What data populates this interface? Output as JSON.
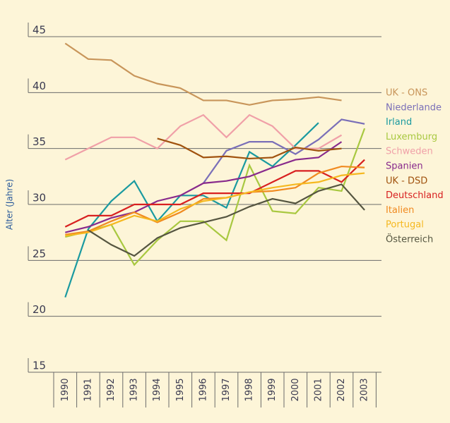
{
  "chart_data": {
    "type": "line",
    "y_label": "Alter (Jahre)",
    "categories": [
      "1990",
      "1991",
      "1992",
      "1993",
      "1994",
      "1995",
      "1996",
      "1997",
      "1998",
      "1999",
      "2000",
      "2001",
      "2002",
      "2003"
    ],
    "ylim": [
      15,
      45
    ],
    "yticks": [
      15,
      20,
      25,
      30,
      35,
      40,
      45
    ],
    "grid": true,
    "legend": "right",
    "series": [
      {
        "name": "UK - ONS",
        "color": "#c8955a",
        "values": [
          44.4,
          43,
          42.9,
          41.5,
          40.8,
          40.4,
          39.3,
          39.3,
          38.9,
          39.3,
          39.4,
          39.6,
          39.3,
          null
        ]
      },
      {
        "name": "Niederlande",
        "color": "#7a6fb8",
        "values": [
          null,
          null,
          null,
          null,
          null,
          null,
          31.9,
          34.8,
          35.6,
          35.6,
          34.5,
          35.8,
          37.6,
          37.2
        ]
      },
      {
        "name": "Irland",
        "color": "#1a9aa0",
        "values": [
          21.7,
          27.8,
          30.3,
          32.1,
          28.5,
          30.8,
          30.8,
          29.7,
          34.7,
          33.4,
          35.3,
          37.3,
          null,
          null
        ]
      },
      {
        "name": "Luxemburg",
        "color": "#a8c840",
        "values": [
          27.1,
          27.6,
          28.2,
          24.6,
          26.8,
          28.5,
          28.5,
          26.8,
          33.5,
          29.4,
          29.2,
          31.5,
          31.2,
          36.8
        ]
      },
      {
        "name": "Schweden",
        "color": "#f0a0a8",
        "values": [
          34,
          35,
          36,
          36,
          35,
          37,
          38,
          36,
          38,
          37,
          35,
          35,
          36.2,
          null
        ]
      },
      {
        "name": "Spanien",
        "color": "#882a8c",
        "values": [
          27.5,
          28,
          28.8,
          29.3,
          30.3,
          30.8,
          31.9,
          32.1,
          32.5,
          33.3,
          34,
          34.2,
          35.6,
          null
        ]
      },
      {
        "name": "UK - DSD",
        "color": "#a0520e",
        "values": [
          null,
          null,
          null,
          null,
          35.9,
          35.3,
          34.2,
          34.3,
          34.1,
          34.2,
          35.1,
          34.8,
          35,
          null
        ]
      },
      {
        "name": "Deutschland",
        "color": "#d82020",
        "values": [
          28,
          29,
          29,
          30,
          30,
          30,
          31,
          31,
          31,
          32,
          33,
          33,
          32,
          34
        ]
      },
      {
        "name": "Italien",
        "color": "#f08a20",
        "values": [
          27.3,
          27.6,
          28.5,
          29.3,
          28.4,
          29.3,
          30.5,
          30.6,
          31.1,
          31.2,
          31.5,
          32.8,
          33.4,
          33.3
        ]
      },
      {
        "name": "Portugal",
        "color": "#f5b820",
        "values": [
          27.2,
          27.5,
          28.2,
          29,
          28.5,
          29.6,
          30.3,
          30.6,
          31.1,
          31.5,
          31.8,
          32,
          32.6,
          32.8
        ]
      },
      {
        "name": "Österreich",
        "color": "#555540",
        "values": [
          null,
          27.7,
          26.4,
          25.4,
          27,
          27.9,
          28.4,
          28.9,
          29.8,
          30.5,
          30.1,
          31.2,
          31.8,
          29.5
        ]
      }
    ]
  }
}
